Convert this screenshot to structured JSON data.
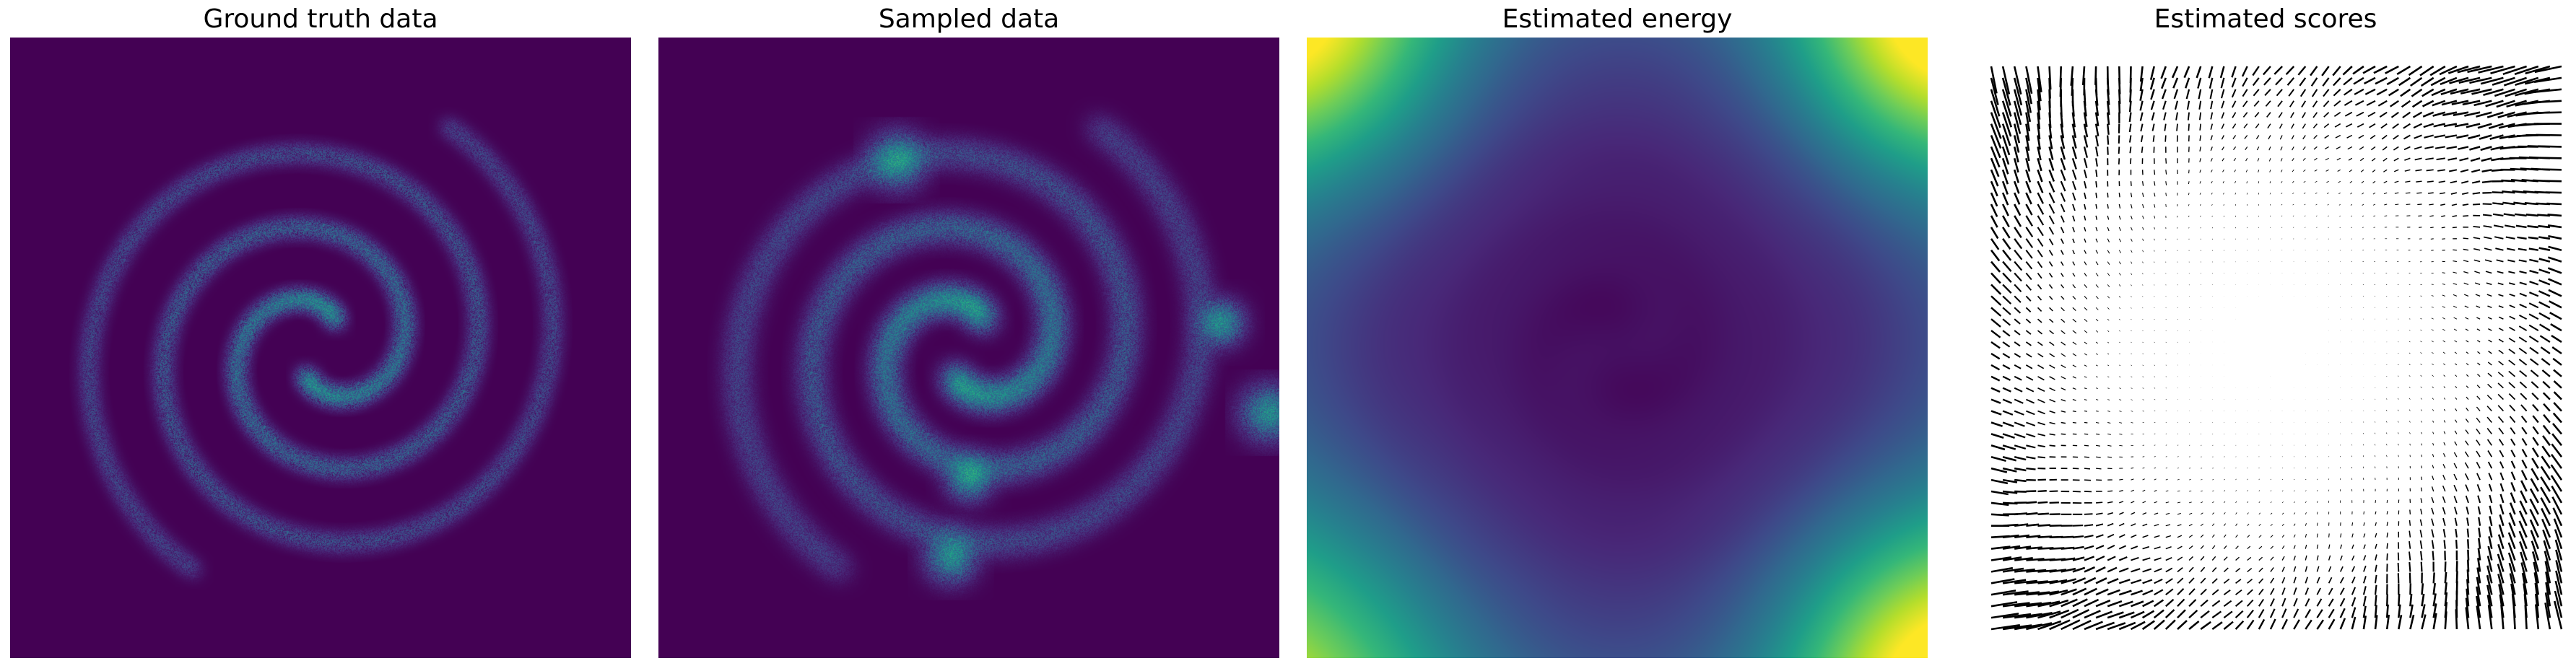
{
  "chart_data": [
    {
      "type": "heatmap",
      "title": "Ground truth data",
      "axes_visible": false,
      "colormap": "viridis",
      "content": "two-arm spiral sample density (sharp)"
    },
    {
      "type": "heatmap",
      "title": "Sampled data",
      "axes_visible": false,
      "colormap": "viridis",
      "content": "two-arm spiral sample density (blurred, with bright clumps)"
    },
    {
      "type": "heatmap",
      "title": "Estimated energy",
      "axes_visible": false,
      "colormap": "viridis",
      "content": "smooth energy field, low along spiral, high in corners"
    },
    {
      "type": "quiver",
      "title": "Estimated scores",
      "axes_visible": false,
      "color": "#000000",
      "content": "score vector field on regular grid"
    }
  ],
  "colors": {
    "background": "#ffffff",
    "viridis_low": "#440154",
    "viridis_mid": "#21908d",
    "viridis_high": "#fde725",
    "arrow": "#000000"
  }
}
